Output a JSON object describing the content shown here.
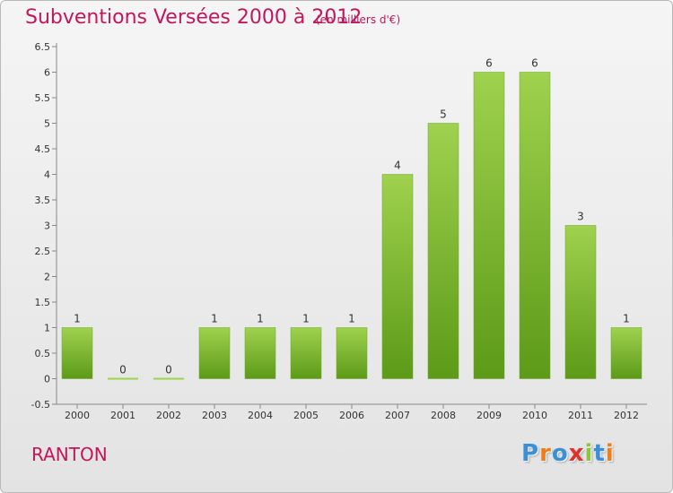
{
  "header": {
    "title": "Subventions Versées 2000 à 2012",
    "subtitle": "(en milliers d'€)"
  },
  "commune": "RANTON",
  "logo": {
    "text": "Proxiti",
    "colors": [
      "#3a8fd6",
      "#ef7d1a",
      "#3a8fd6",
      "#e0312a",
      "#8cc63f",
      "#3a8fd6",
      "#ef7d1a"
    ]
  },
  "colors": {
    "bar_top": "#9fd24e",
    "bar_bottom": "#5c9a17",
    "title": "#c2185b"
  },
  "chart_data": {
    "type": "bar",
    "categories": [
      "2000",
      "2001",
      "2002",
      "2003",
      "2004",
      "2005",
      "2006",
      "2007",
      "2008",
      "2009",
      "2010",
      "2011",
      "2012"
    ],
    "values": [
      1,
      0,
      0,
      1,
      1,
      1,
      1,
      4,
      5,
      6,
      6,
      3,
      1
    ],
    "data_labels": [
      "1",
      "0",
      "0",
      "1",
      "1",
      "1",
      "1",
      "4",
      "5",
      "6",
      "6",
      "3",
      "1"
    ],
    "ylim": [
      -0.5,
      6.5
    ],
    "yticks": [
      -0.5,
      0,
      0.5,
      1,
      1.5,
      2,
      2.5,
      3,
      3.5,
      4,
      4.5,
      5,
      5.5,
      6,
      6.5
    ],
    "ytick_labels": [
      "-0.5",
      "0",
      "0.5",
      "1",
      "1.5",
      "2",
      "2.5",
      "3",
      "3.5",
      "4",
      "4.5",
      "5",
      "5.5",
      "6",
      "6.5"
    ],
    "grid": false,
    "title": "Subventions Versées 2000 à 2012",
    "xlabel": "",
    "ylabel": ""
  }
}
